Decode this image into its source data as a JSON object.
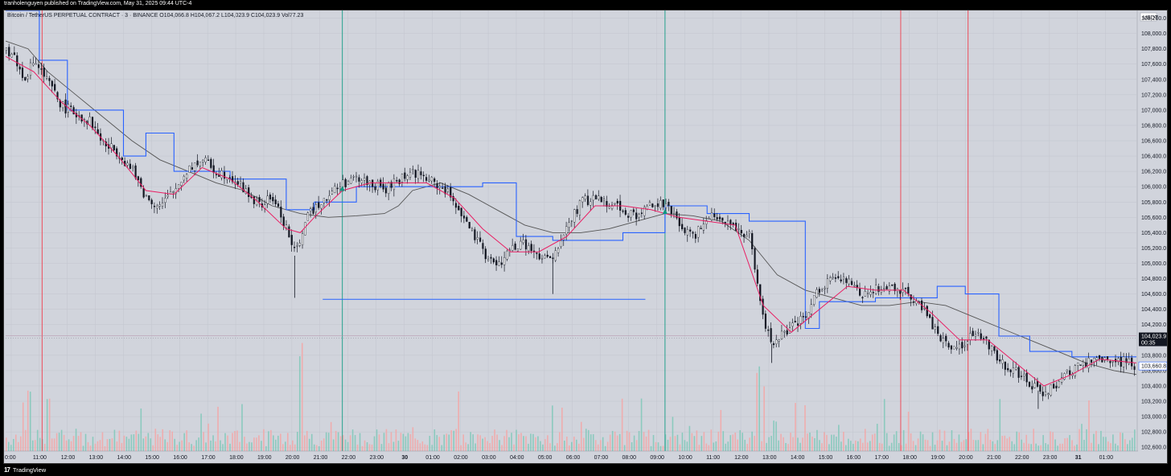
{
  "header": {
    "published": "tranholenguyen published on TradingView.com, May 31, 2025 09:44 UTC-4"
  },
  "legend": {
    "text": "Bitcoin / TetherUS PERPETUAL CONTRACT · 3 · BINANCE  O104,066.8  H104,067.2  L104,023.9  C104,023.9  Vol77.23"
  },
  "price_axis": {
    "currency": "USDT",
    "ticks": [
      "108,200.0",
      "108,000.0",
      "107,800.0",
      "107,600.0",
      "107,400.0",
      "107,200.0",
      "107,000.0",
      "106,800.0",
      "106,600.0",
      "106,400.0",
      "106,200.0",
      "106,000.0",
      "105,800.0",
      "105,600.0",
      "105,400.0",
      "105,200.0",
      "105,000.0",
      "104,800.0",
      "104,600.0",
      "104,400.0",
      "104,200.0",
      "103,800.0",
      "103,600.0",
      "103,400.0",
      "103,200.0",
      "103,000.0",
      "102,800.0",
      "102,600.0"
    ],
    "current_price": "104,023.9",
    "countdown": "00:35",
    "second_label": "103,660.8"
  },
  "time_axis": {
    "ticks": [
      "0:00",
      "11:00",
      "12:00",
      "13:00",
      "14:00",
      "15:00",
      "16:00",
      "17:00",
      "18:00",
      "19:00",
      "20:00",
      "21:00",
      "22:00",
      "23:00",
      "30",
      "01:00",
      "02:00",
      "03:00",
      "04:00",
      "05:00",
      "06:00",
      "07:00",
      "08:00",
      "09:00",
      "10:00",
      "11:00",
      "12:00",
      "13:00",
      "14:00",
      "15:00",
      "16:00",
      "17:00",
      "18:00",
      "19:00",
      "20:00",
      "21:00",
      "22:00",
      "23:00",
      "31",
      "01:00"
    ]
  },
  "footer": {
    "brand": "TradingView"
  },
  "colors": {
    "background": "#d1d4dc",
    "candle_up": "#ffffff",
    "candle_down": "#131722",
    "ma_pink": "#e91e63",
    "ma_blue": "#2962ff",
    "ma_gray": "#555555",
    "vline_red": "#f23645",
    "vline_green": "#089981",
    "vol_up": "#7fc8b8",
    "vol_down": "#f4a6a6"
  },
  "chart_data": {
    "type": "candlestick",
    "symbol": "Bitcoin / TetherUS PERPETUAL CONTRACT",
    "exchange": "BINANCE",
    "interval": "3",
    "ylim": [
      102550,
      108300
    ],
    "open": 104066.8,
    "high": 104067.2,
    "low": 104023.9,
    "close": 104023.9,
    "volume": 77.23,
    "price_path": [
      [
        0,
        107800
      ],
      [
        0.3,
        107700
      ],
      [
        0.6,
        107400
      ],
      [
        1.0,
        107650
      ],
      [
        1.5,
        107350
      ],
      [
        2.0,
        107050
      ],
      [
        2.5,
        106950
      ],
      [
        3.0,
        106850
      ],
      [
        3.5,
        106550
      ],
      [
        4.0,
        106450
      ],
      [
        4.5,
        106200
      ],
      [
        5.0,
        105850
      ],
      [
        5.5,
        105750
      ],
      [
        6.0,
        105950
      ],
      [
        6.5,
        106250
      ],
      [
        7.0,
        106350
      ],
      [
        7.5,
        106200
      ],
      [
        8.0,
        106150
      ],
      [
        8.5,
        105950
      ],
      [
        9.0,
        105750
      ],
      [
        9.5,
        105850
      ],
      [
        10.0,
        105450
      ],
      [
        10.3,
        105100
      ],
      [
        10.6,
        105500
      ],
      [
        11.0,
        105750
      ],
      [
        11.5,
        105900
      ],
      [
        12.0,
        106050
      ],
      [
        12.5,
        106100
      ],
      [
        13.0,
        106050
      ],
      [
        13.5,
        105950
      ],
      [
        14.0,
        106100
      ],
      [
        14.5,
        106200
      ],
      [
        15.0,
        106100
      ],
      [
        15.5,
        106000
      ],
      [
        16.0,
        105800
      ],
      [
        16.5,
        105450
      ],
      [
        17.0,
        105150
      ],
      [
        17.5,
        104950
      ],
      [
        18.0,
        105200
      ],
      [
        18.5,
        105250
      ],
      [
        19.0,
        105050
      ],
      [
        19.5,
        105050
      ],
      [
        20.0,
        105500
      ],
      [
        20.5,
        105800
      ],
      [
        21.0,
        105850
      ],
      [
        21.5,
        105800
      ],
      [
        22.0,
        105700
      ],
      [
        22.5,
        105600
      ],
      [
        23.0,
        105800
      ],
      [
        23.5,
        105750
      ],
      [
        24.0,
        105500
      ],
      [
        24.5,
        105350
      ],
      [
        25.0,
        105650
      ],
      [
        25.5,
        105600
      ],
      [
        26.0,
        105450
      ],
      [
        26.5,
        105350
      ],
      [
        26.8,
        104600
      ],
      [
        27.0,
        104250
      ],
      [
        27.3,
        103950
      ],
      [
        27.6,
        104050
      ],
      [
        28.0,
        104150
      ],
      [
        28.5,
        104300
      ],
      [
        29.0,
        104700
      ],
      [
        29.5,
        104800
      ],
      [
        30.0,
        104750
      ],
      [
        30.5,
        104600
      ],
      [
        31.0,
        104650
      ],
      [
        31.5,
        104700
      ],
      [
        32.0,
        104650
      ],
      [
        32.5,
        104500
      ],
      [
        33.0,
        104200
      ],
      [
        33.5,
        103950
      ],
      [
        34.0,
        103900
      ],
      [
        34.5,
        104100
      ],
      [
        35.0,
        103950
      ],
      [
        35.5,
        103700
      ],
      [
        36.0,
        103600
      ],
      [
        36.5,
        103400
      ],
      [
        37.0,
        103300
      ],
      [
        37.5,
        103450
      ],
      [
        38.0,
        103600
      ],
      [
        38.5,
        103700
      ],
      [
        39.0,
        103750
      ],
      [
        39.5,
        103700
      ],
      [
        40.0,
        103750
      ],
      [
        40.3,
        103600
      ]
    ],
    "ma_pink_path": [
      [
        0,
        107700
      ],
      [
        1.0,
        107500
      ],
      [
        2.0,
        107100
      ],
      [
        3.0,
        106800
      ],
      [
        4.0,
        106400
      ],
      [
        5.0,
        105950
      ],
      [
        6.0,
        105900
      ],
      [
        7.0,
        106250
      ],
      [
        8.0,
        106100
      ],
      [
        9.0,
        105800
      ],
      [
        10.0,
        105450
      ],
      [
        10.5,
        105400
      ],
      [
        11.0,
        105600
      ],
      [
        12.0,
        105950
      ],
      [
        13.0,
        106050
      ],
      [
        14.0,
        106050
      ],
      [
        15.0,
        106050
      ],
      [
        16.0,
        105850
      ],
      [
        17.0,
        105450
      ],
      [
        18.0,
        105150
      ],
      [
        19.0,
        105150
      ],
      [
        20.0,
        105350
      ],
      [
        21.0,
        105750
      ],
      [
        22.0,
        105750
      ],
      [
        23.0,
        105700
      ],
      [
        24.0,
        105600
      ],
      [
        25.0,
        105550
      ],
      [
        26.0,
        105500
      ],
      [
        27.0,
        104450
      ],
      [
        28.0,
        104100
      ],
      [
        29.0,
        104400
      ],
      [
        30.0,
        104700
      ],
      [
        31.0,
        104650
      ],
      [
        32.0,
        104650
      ],
      [
        33.0,
        104350
      ],
      [
        34.0,
        104000
      ],
      [
        35.0,
        104000
      ],
      [
        36.0,
        103700
      ],
      [
        37.0,
        103400
      ],
      [
        38.0,
        103550
      ],
      [
        39.0,
        103750
      ],
      [
        40.3,
        103700
      ]
    ],
    "ma_blue_path": [
      [
        0,
        108300
      ],
      [
        1.2,
        108300
      ],
      [
        1.2,
        107650
      ],
      [
        2.2,
        107650
      ],
      [
        2.2,
        107000
      ],
      [
        4.2,
        107000
      ],
      [
        4.2,
        106400
      ],
      [
        5.0,
        106400
      ],
      [
        5.0,
        106700
      ],
      [
        6.0,
        106700
      ],
      [
        6.0,
        106200
      ],
      [
        8.0,
        106200
      ],
      [
        8.0,
        106100
      ],
      [
        10.0,
        106100
      ],
      [
        10.0,
        105700
      ],
      [
        11.0,
        105700
      ],
      [
        11.0,
        105800
      ],
      [
        12.5,
        105800
      ],
      [
        12.5,
        106000
      ],
      [
        17.0,
        106000
      ],
      [
        17.0,
        106050
      ],
      [
        18.2,
        106050
      ],
      [
        18.2,
        105350
      ],
      [
        19.5,
        105350
      ],
      [
        19.5,
        105300
      ],
      [
        22.0,
        105300
      ],
      [
        22.0,
        105400
      ],
      [
        23.5,
        105400
      ],
      [
        23.5,
        105750
      ],
      [
        25.0,
        105750
      ],
      [
        25.0,
        105650
      ],
      [
        26.5,
        105650
      ],
      [
        26.5,
        105550
      ],
      [
        28.5,
        105550
      ],
      [
        28.5,
        104150
      ],
      [
        29.0,
        104150
      ],
      [
        29.0,
        104500
      ],
      [
        31.0,
        104500
      ],
      [
        31.0,
        104550
      ],
      [
        33.2,
        104550
      ],
      [
        33.2,
        104700
      ],
      [
        34.2,
        104700
      ],
      [
        34.2,
        104600
      ],
      [
        35.4,
        104600
      ],
      [
        35.4,
        104050
      ],
      [
        36.5,
        104050
      ],
      [
        36.5,
        103850
      ],
      [
        38.0,
        103850
      ],
      [
        38.0,
        103780
      ],
      [
        40.3,
        103780
      ]
    ],
    "ma_gray_path": [
      [
        0,
        107900
      ],
      [
        0.8,
        107800
      ],
      [
        1.5,
        107500
      ],
      [
        2.5,
        107200
      ],
      [
        3.5,
        106900
      ],
      [
        4.5,
        106600
      ],
      [
        5.5,
        106350
      ],
      [
        6.5,
        106200
      ],
      [
        7.5,
        106050
      ],
      [
        8.5,
        105950
      ],
      [
        9.5,
        105750
      ],
      [
        10.5,
        105650
      ],
      [
        11.5,
        105600
      ],
      [
        12.5,
        105620
      ],
      [
        13.5,
        105650
      ],
      [
        14.0,
        105750
      ],
      [
        14.5,
        105950
      ],
      [
        15.5,
        106050
      ],
      [
        16.5,
        105900
      ],
      [
        17.5,
        105700
      ],
      [
        18.5,
        105500
      ],
      [
        19.5,
        105400
      ],
      [
        20.5,
        105400
      ],
      [
        21.5,
        105450
      ],
      [
        22.5,
        105550
      ],
      [
        23.5,
        105650
      ],
      [
        24.5,
        105620
      ],
      [
        25.5,
        105550
      ],
      [
        26.5,
        105300
      ],
      [
        27.5,
        104850
      ],
      [
        28.5,
        104650
      ],
      [
        29.5,
        104550
      ],
      [
        30.5,
        104450
      ],
      [
        31.5,
        104450
      ],
      [
        32.5,
        104500
      ],
      [
        33.5,
        104450
      ],
      [
        34.5,
        104300
      ],
      [
        35.5,
        104150
      ],
      [
        36.5,
        104000
      ],
      [
        37.5,
        103850
      ],
      [
        38.5,
        103700
      ],
      [
        39.5,
        103600
      ],
      [
        40.3,
        103550
      ]
    ],
    "horizontal_level": {
      "from": 11.3,
      "to": 22.8,
      "price": 104530
    },
    "current_price_line": 104023.9,
    "vertical_lines": [
      {
        "x": 1.3,
        "kind": "red"
      },
      {
        "x": 12.0,
        "kind": "green"
      },
      {
        "x": 23.5,
        "kind": "green"
      },
      {
        "x": 31.9,
        "kind": "red"
      },
      {
        "x": 34.3,
        "kind": "red"
      }
    ]
  }
}
